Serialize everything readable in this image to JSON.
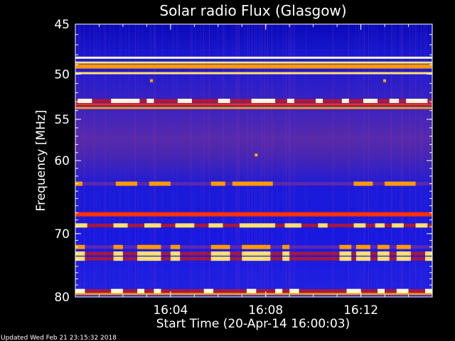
{
  "chart_data": {
    "type": "heatmap",
    "title": "Solar radio Flux (Glasgow)",
    "xlabel": "Start Time (20-Apr-14 16:00:03)",
    "ylabel": "Frequency [MHz]",
    "x_unit": "minutes after 16:00:03",
    "xlim": [
      0,
      15
    ],
    "ylim": [
      80,
      45
    ],
    "x_ticks": [
      {
        "value": 4,
        "label": "16:04"
      },
      {
        "value": 8,
        "label": "16:08"
      },
      {
        "value": 12,
        "label": "16:12"
      }
    ],
    "y_ticks": [
      {
        "value": 45,
        "label": "45"
      },
      {
        "value": 50,
        "label": "50"
      },
      {
        "value": 55,
        "label": "55"
      },
      {
        "value": 60,
        "label": "60"
      },
      {
        "value": 70,
        "label": "70"
      },
      {
        "value": 80,
        "label": "80"
      }
    ],
    "colormap": [
      "#0000a8",
      "#2020e8",
      "#6a2aa8",
      "#c81818",
      "#ff3000",
      "#ff9a00",
      "#ffe070",
      "#fff8d8"
    ],
    "continuous_bands": [
      {
        "freq": 48.3,
        "intensity": 0.95
      },
      {
        "freq": 48.8,
        "intensity": 0.8
      },
      {
        "freq": 49.9,
        "intensity": 0.9
      },
      {
        "freq": 53.3,
        "intensity": 0.6
      },
      {
        "freq": 53.7,
        "intensity": 0.75
      },
      {
        "freq": 79.5,
        "intensity": 0.65
      }
    ],
    "interference_bands": [
      {
        "freq": 49.2,
        "intensity": 0.7,
        "segments": [
          [
            0.0,
            15.0
          ]
        ]
      },
      {
        "freq": 52.9,
        "intensity": 0.95,
        "segments": [
          [
            0.1,
            0.7
          ],
          [
            1.5,
            2.7
          ],
          [
            3.0,
            3.3
          ],
          [
            4.3,
            4.9
          ],
          [
            6.0,
            6.5
          ],
          [
            7.4,
            8.4
          ],
          [
            8.9,
            9.2
          ],
          [
            10.1,
            10.4
          ],
          [
            11.2,
            11.5
          ],
          [
            12.1,
            12.7
          ],
          [
            13.2,
            13.6
          ],
          [
            13.9,
            14.8
          ]
        ]
      },
      {
        "freq": 63.0,
        "intensity": 0.75,
        "segments": [
          [
            0.0,
            0.3
          ],
          [
            1.7,
            2.6
          ],
          [
            3.1,
            4.0
          ],
          [
            5.7,
            6.3
          ],
          [
            6.6,
            8.3
          ],
          [
            11.7,
            12.5
          ],
          [
            13.0,
            14.3
          ]
        ]
      },
      {
        "freq": 67.2,
        "intensity": 0.6,
        "segments": [
          [
            0.0,
            15.0
          ]
        ]
      },
      {
        "freq": 68.8,
        "intensity": 0.9,
        "segments": [
          [
            0.0,
            0.5
          ],
          [
            1.6,
            2.2
          ],
          [
            2.9,
            3.6
          ],
          [
            4.2,
            5.0
          ],
          [
            5.6,
            6.2
          ],
          [
            6.9,
            8.4
          ],
          [
            8.8,
            9.5
          ],
          [
            10.2,
            10.6
          ],
          [
            11.7,
            12.2
          ],
          [
            12.6,
            13.0
          ],
          [
            13.3,
            13.8
          ],
          [
            14.3,
            14.8
          ]
        ]
      },
      {
        "freq": 72.0,
        "intensity": 0.7,
        "segments": [
          [
            0.0,
            0.4
          ],
          [
            1.6,
            2.0
          ],
          [
            2.6,
            3.6
          ],
          [
            4.0,
            4.4
          ],
          [
            5.7,
            6.5
          ],
          [
            7.0,
            8.2
          ],
          [
            8.7,
            9.0
          ],
          [
            11.1,
            11.6
          ],
          [
            11.8,
            12.4
          ],
          [
            12.7,
            13.2
          ],
          [
            13.5,
            14.1
          ]
        ]
      },
      {
        "freq": 73.0,
        "intensity": 0.8,
        "segments": [
          [
            0.0,
            0.4
          ],
          [
            1.6,
            2.0
          ],
          [
            2.6,
            3.6
          ],
          [
            4.0,
            4.4
          ],
          [
            5.7,
            6.5
          ],
          [
            7.0,
            8.2
          ],
          [
            8.7,
            9.0
          ],
          [
            11.1,
            11.6
          ],
          [
            11.8,
            12.4
          ],
          [
            12.7,
            13.2
          ],
          [
            13.5,
            14.1
          ],
          [
            14.7,
            15.0
          ]
        ]
      },
      {
        "freq": 73.8,
        "intensity": 0.9,
        "segments": [
          [
            0.0,
            0.4
          ],
          [
            1.6,
            2.0
          ],
          [
            2.6,
            3.6
          ],
          [
            4.0,
            4.4
          ],
          [
            5.7,
            6.5
          ],
          [
            7.0,
            8.2
          ],
          [
            8.7,
            9.0
          ],
          [
            11.1,
            11.6
          ],
          [
            11.8,
            12.4
          ],
          [
            12.7,
            13.2
          ],
          [
            13.5,
            14.1
          ],
          [
            14.7,
            15.0
          ]
        ]
      },
      {
        "freq": 79.0,
        "intensity": 0.95,
        "segments": [
          [
            0.0,
            0.4
          ],
          [
            1.5,
            2.0
          ],
          [
            2.6,
            2.9
          ],
          [
            3.3,
            3.6
          ],
          [
            5.4,
            5.8
          ],
          [
            7.2,
            7.6
          ],
          [
            8.4,
            8.7
          ],
          [
            9.0,
            9.4
          ],
          [
            11.4,
            12.0
          ],
          [
            12.7,
            13.0
          ],
          [
            13.5,
            14.0
          ],
          [
            14.7,
            15.0
          ]
        ]
      }
    ],
    "bursts": [
      {
        "time": 3.2,
        "freq": 50.7
      },
      {
        "time": 7.6,
        "freq": 59.3
      },
      {
        "time": 13.0,
        "freq": 50.7
      }
    ]
  },
  "footer": {
    "updated": "Updated Wed Feb 21 23:15:32 2018"
  }
}
